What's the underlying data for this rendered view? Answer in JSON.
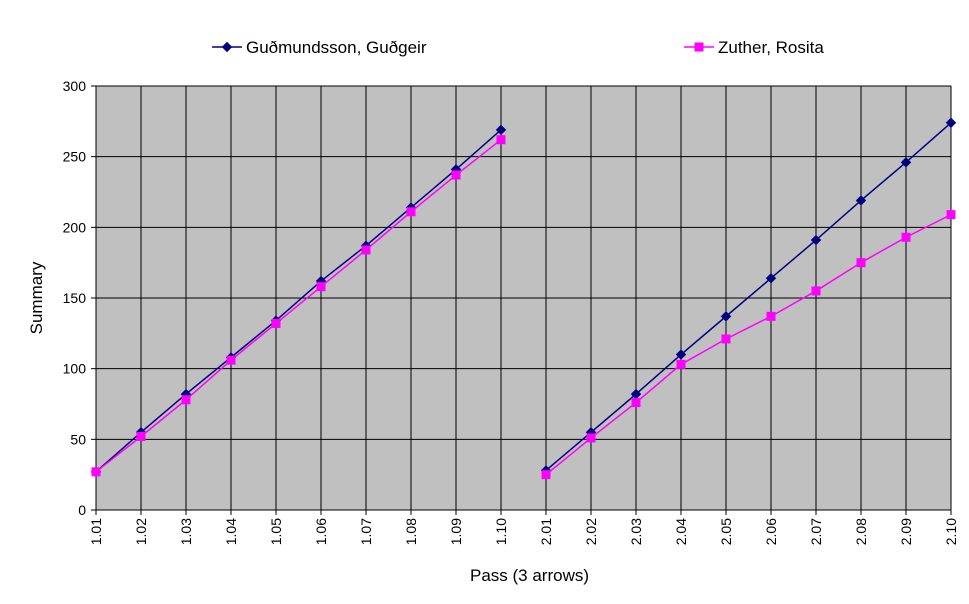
{
  "chart_data": {
    "type": "line",
    "xlabel": "Pass (3 arrows)",
    "ylabel": "Summary",
    "ylim": [
      0,
      300
    ],
    "yticks": [
      0,
      50,
      100,
      150,
      200,
      250,
      300
    ],
    "grid": true,
    "legend_position": "top",
    "plot_background": "#c0c0c0",
    "categories": [
      "1.01",
      "1.02",
      "1.03",
      "1.04",
      "1.05",
      "1.06",
      "1.07",
      "1.08",
      "1.09",
      "1.10",
      "2.01",
      "2.02",
      "2.03",
      "2.04",
      "2.05",
      "2.06",
      "2.07",
      "2.08",
      "2.09",
      "2.10"
    ],
    "series": [
      {
        "name": "Guðmundsson, Guðgeir",
        "color": "#000080",
        "marker": "diamond",
        "values": [
          27,
          55,
          82,
          108,
          134,
          162,
          187,
          214,
          241,
          269,
          28,
          55,
          82,
          110,
          137,
          164,
          191,
          219,
          246,
          274
        ]
      },
      {
        "name": "Zuther, Rosita",
        "color": "#ff00ff",
        "marker": "square",
        "values": [
          27,
          52,
          78,
          106,
          132,
          158,
          184,
          211,
          237,
          262,
          25,
          51,
          76,
          103,
          121,
          137,
          155,
          175,
          193,
          209
        ]
      }
    ]
  }
}
